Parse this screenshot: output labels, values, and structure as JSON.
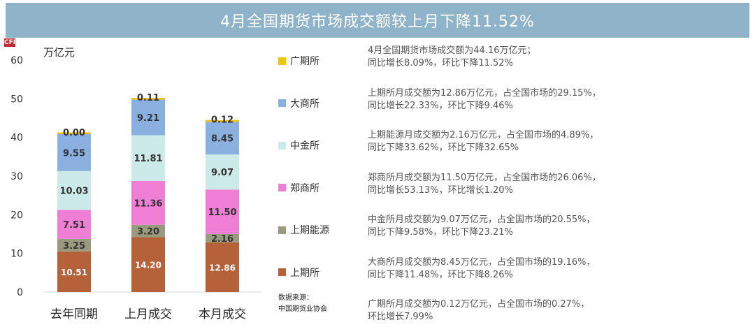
{
  "title": "4月全国期货市场成交额较上月下降11.52%",
  "logo_text": "CFI",
  "chart_data": {
    "type": "bar",
    "stacked": true,
    "unit_label": "万亿元",
    "categories": [
      "去年同期",
      "上月成交",
      "本月成交"
    ],
    "ylim": [
      0,
      60
    ],
    "yticks": [
      "0",
      "10",
      "20",
      "30",
      "40",
      "50",
      "60"
    ],
    "grid": false,
    "legend_position": "right",
    "series": [
      {
        "name": "上期所",
        "color": "#b5623a",
        "values": [
          10.51,
          14.2,
          12.86
        ],
        "labels": [
          "10.51",
          "14.20",
          "12.86"
        ]
      },
      {
        "name": "上期能源",
        "color": "#9a9a7e",
        "values": [
          3.25,
          3.2,
          2.16
        ],
        "labels": [
          "3.25",
          "3.20",
          "2.16"
        ]
      },
      {
        "name": "郑商所",
        "color": "#ee7fd5",
        "values": [
          7.51,
          11.36,
          11.5
        ],
        "labels": [
          "7.51",
          "11.36",
          "11.50"
        ]
      },
      {
        "name": "中金所",
        "color": "#cdeaea",
        "values": [
          10.03,
          11.81,
          9.07
        ],
        "labels": [
          "10.03",
          "11.81",
          "9.07"
        ]
      },
      {
        "name": "大商所",
        "color": "#8ab0df",
        "values": [
          9.55,
          9.21,
          8.45
        ],
        "labels": [
          "9.55",
          "9.21",
          "8.45"
        ]
      },
      {
        "name": "广期所",
        "color": "#f2c211",
        "values": [
          0.0,
          0.11,
          0.12
        ],
        "labels": [
          "0.00",
          "0.11",
          "0.12"
        ]
      }
    ]
  },
  "legend_order": [
    "广期所",
    "大商所",
    "中金所",
    "郑商所",
    "上期能源",
    "上期所"
  ],
  "source": {
    "line1": "数据来源：",
    "line2": "中国期货业协会"
  },
  "notes": [
    {
      "line1": "4月全国期货市场成交额为44.16万亿元；",
      "line2": "同比增长8.09%，环比下降11.52%"
    },
    {
      "line1": "上期所月成交额为12.86万亿元，占全国市场的29.15%，",
      "line2": "同比增长22.33%，环比下降9.46%"
    },
    {
      "line1": "上期能源月成交额为2.16万亿元，占全国市场的4.89%，",
      "line2": "同比下降33.62%，环比下降32.65%"
    },
    {
      "line1": "郑商所月成交额为11.50万亿元，占全国市场的26.06%，",
      "line2": "同比增长53.13%，环比增长1.20%"
    },
    {
      "line1": "中金所月成交额为9.07万亿元，占全国市场的20.55%，",
      "line2": "同比下降9.58%，环比下降23.21%"
    },
    {
      "line1": "大商所月成交额为8.45万亿元，占全国市场的19.16%，",
      "line2": "同比下降11.48%，环比下降8.26%"
    },
    {
      "line1": "广期所月成交额为0.12万亿元，占全国市场的0.27%，",
      "line2": "环比增长7.99%"
    }
  ]
}
